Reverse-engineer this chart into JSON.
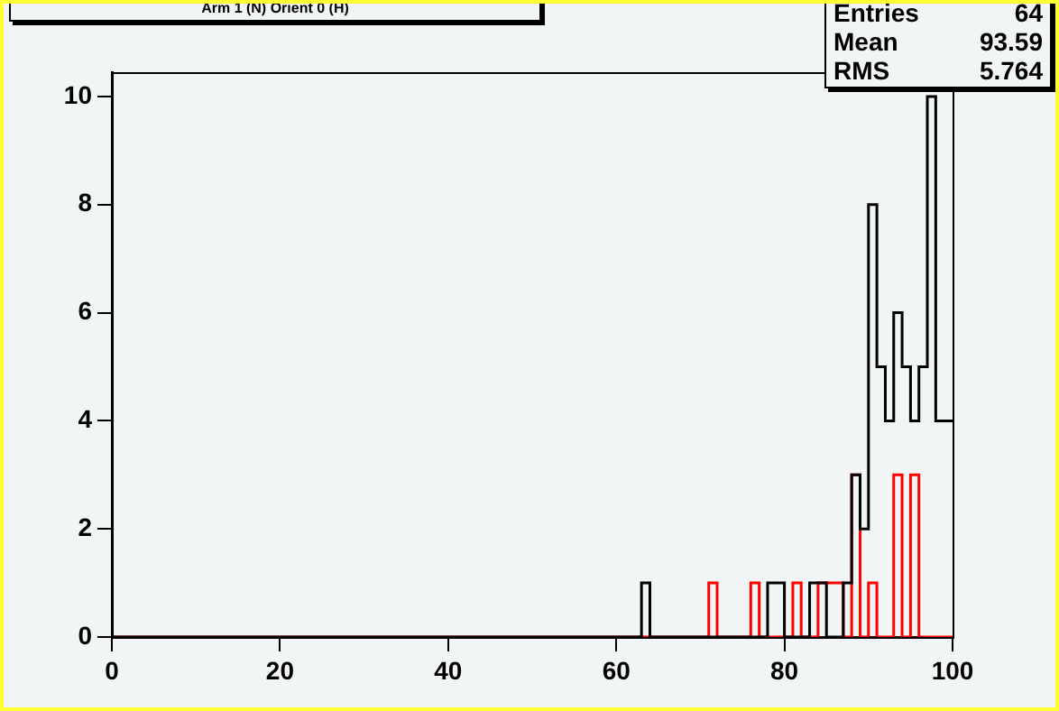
{
  "chart_data": {
    "type": "histogram",
    "title": "Arm 1 (N) Orient 0 (H)",
    "annotations": [
      "Entries",
      "64",
      "Mean",
      "93.59",
      "RMS",
      "5.764"
    ],
    "bins": [
      0,
      1,
      2,
      3,
      4,
      5,
      6,
      7,
      8,
      9,
      10,
      11,
      12,
      13,
      14,
      15,
      16,
      17,
      18,
      19,
      20,
      21,
      22,
      23,
      24,
      25,
      26,
      27,
      28,
      29,
      30,
      31,
      32,
      33,
      34,
      35,
      36,
      37,
      38,
      39,
      40,
      41,
      42,
      43,
      44,
      45,
      46,
      47,
      48,
      49,
      50,
      51,
      52,
      53,
      54,
      55,
      56,
      57,
      58,
      59,
      60,
      61,
      62,
      63,
      64,
      65,
      66,
      67,
      68,
      69,
      70,
      71,
      72,
      73,
      74,
      75,
      76,
      77,
      78,
      79,
      80,
      81,
      82,
      83,
      84,
      85,
      86,
      87,
      88,
      89,
      90,
      91,
      92,
      93,
      94,
      95,
      96,
      97,
      98,
      99,
      100
    ],
    "series": [
      {
        "color": "#000000",
        "values": [
          0,
          0,
          0,
          0,
          0,
          0,
          0,
          0,
          0,
          0,
          0,
          0,
          0,
          0,
          0,
          0,
          0,
          0,
          0,
          0,
          0,
          0,
          0,
          0,
          0,
          0,
          0,
          0,
          0,
          0,
          0,
          0,
          0,
          0,
          0,
          0,
          0,
          0,
          0,
          0,
          0,
          0,
          0,
          0,
          0,
          0,
          0,
          0,
          0,
          0,
          0,
          0,
          0,
          0,
          0,
          0,
          0,
          0,
          0,
          0,
          0,
          0,
          0,
          1,
          0,
          0,
          0,
          0,
          0,
          0,
          0,
          0,
          0,
          0,
          0,
          0,
          0,
          0,
          1,
          1,
          0,
          0,
          0,
          1,
          1,
          0,
          0,
          1,
          3,
          2,
          8,
          5,
          4,
          6,
          5,
          4,
          5,
          10,
          4,
          4
        ]
      },
      {
        "color": "#ff0000",
        "values": [
          0,
          0,
          0,
          0,
          0,
          0,
          0,
          0,
          0,
          0,
          0,
          0,
          0,
          0,
          0,
          0,
          0,
          0,
          0,
          0,
          0,
          0,
          0,
          0,
          0,
          0,
          0,
          0,
          0,
          0,
          0,
          0,
          0,
          0,
          0,
          0,
          0,
          0,
          0,
          0,
          0,
          0,
          0,
          0,
          0,
          0,
          0,
          0,
          0,
          0,
          0,
          0,
          0,
          0,
          0,
          0,
          0,
          0,
          0,
          0,
          0,
          0,
          0,
          0,
          0,
          0,
          0,
          0,
          0,
          0,
          0,
          1,
          0,
          0,
          0,
          0,
          1,
          0,
          0,
          0,
          0,
          1,
          0,
          0,
          1,
          1,
          1,
          0,
          3,
          0,
          1,
          0,
          0,
          3,
          0,
          3,
          0,
          0,
          0,
          0
        ]
      }
    ],
    "xlim": [
      0,
      100
    ],
    "xticks": [
      0,
      20,
      40,
      60,
      80,
      100
    ],
    "ylim": [
      0,
      10.45
    ],
    "yticks": [
      0,
      2,
      4,
      6,
      8,
      10
    ],
    "grid": false,
    "legend": false
  }
}
